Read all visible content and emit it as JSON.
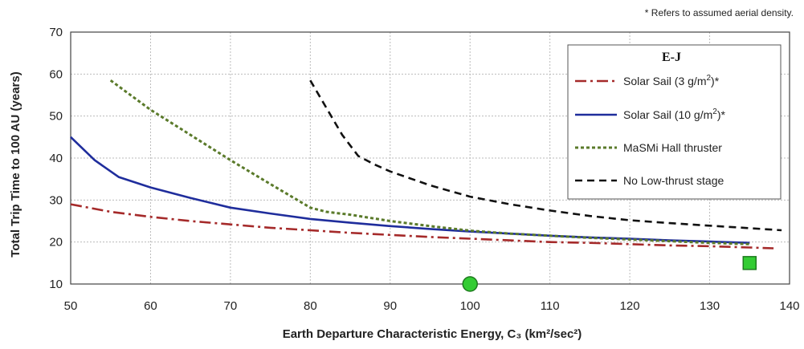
{
  "chart_data": {
    "type": "line",
    "note": "* Refers to assumed aerial density.",
    "xlabel": "Earth Departure Characteristic Energy, C₃ (km²/sec²)",
    "ylabel": "Total Trip Time to 100 AU (years)",
    "xlim": [
      50,
      140
    ],
    "ylim": [
      10,
      70
    ],
    "xticks": [
      50,
      60,
      70,
      80,
      90,
      100,
      110,
      120,
      130,
      140
    ],
    "yticks": [
      10,
      20,
      30,
      40,
      50,
      60,
      70
    ],
    "grid": true,
    "legend": {
      "title": "E-J",
      "position": "top-right"
    },
    "series": [
      {
        "name": "Solar Sail (3 g/m²)*",
        "color": "#a52a2a",
        "style": "dashdot",
        "x": [
          50,
          55,
          60,
          65,
          70,
          75,
          80,
          85,
          90,
          95,
          100,
          105,
          110,
          115,
          120,
          125,
          130,
          135,
          138
        ],
        "y": [
          29,
          27.2,
          26,
          25,
          24.2,
          23.4,
          22.8,
          22.2,
          21.7,
          21.2,
          20.8,
          20.4,
          20.0,
          19.8,
          19.5,
          19.2,
          19.0,
          18.7,
          18.5
        ]
      },
      {
        "name": "Solar Sail (10 g/m²)*",
        "color": "#1f2d9c",
        "style": "solid",
        "x": [
          50,
          53,
          56,
          60,
          65,
          70,
          75,
          80,
          85,
          90,
          95,
          100,
          105,
          110,
          115,
          120,
          125,
          130,
          135
        ],
        "y": [
          45,
          39.5,
          35.5,
          33,
          30.5,
          28.2,
          26.8,
          25.5,
          24.6,
          23.8,
          23.1,
          22.5,
          22.0,
          21.5,
          21.1,
          20.8,
          20.4,
          20.1,
          19.8
        ]
      },
      {
        "name": "MaSMi Hall thruster",
        "color": "#5a7a2a",
        "style": "dotted",
        "x": [
          55,
          60,
          65,
          70,
          75,
          80,
          82,
          85,
          90,
          95,
          100,
          105,
          110,
          115,
          120,
          125,
          130,
          135
        ],
        "y": [
          58.5,
          51.5,
          45.5,
          39.5,
          33.8,
          28.2,
          27.2,
          26.5,
          25,
          23.8,
          22.7,
          22.0,
          21.5,
          21.0,
          20.6,
          20.2,
          19.8,
          19.5
        ]
      },
      {
        "name": "No Low-thrust stage",
        "color": "#111111",
        "style": "dashed",
        "x": [
          80,
          82,
          84,
          86,
          88,
          90,
          95,
          100,
          105,
          110,
          115,
          120,
          125,
          130,
          135,
          139
        ],
        "y": [
          58.5,
          52,
          45.5,
          40.5,
          38.5,
          36.8,
          33.5,
          30.8,
          29,
          27.5,
          26.2,
          25.2,
          24.5,
          23.9,
          23.3,
          22.8
        ]
      }
    ],
    "markers": [
      {
        "name": "green circle",
        "shape": "circle",
        "x": 100,
        "y": 10,
        "color": "#33cc33"
      },
      {
        "name": "green square",
        "shape": "square",
        "x": 135,
        "y": 15,
        "color": "#33cc33"
      }
    ]
  }
}
